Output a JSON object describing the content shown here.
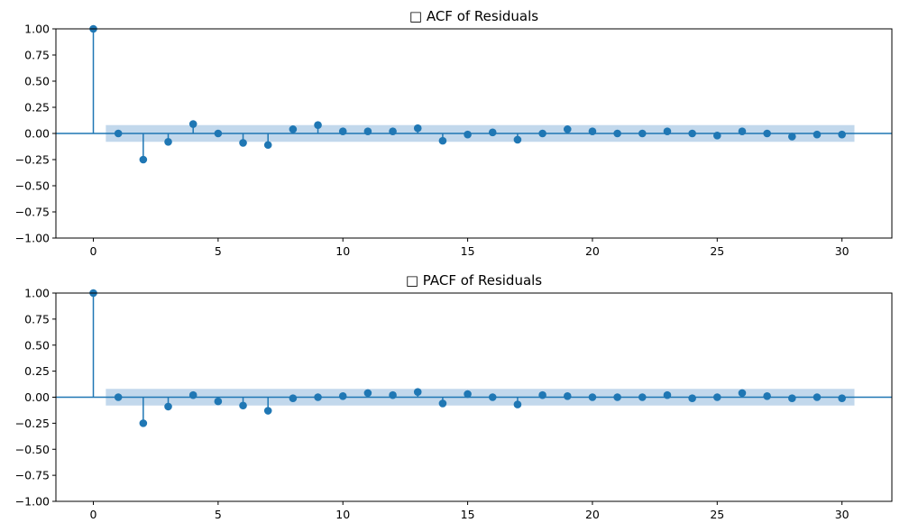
{
  "chart_data": [
    {
      "type": "stem",
      "title": "□ ACF of Residuals",
      "xlabel": "",
      "ylabel": "",
      "xlim": [
        -1.5,
        32
      ],
      "ylim": [
        -1.0,
        1.0
      ],
      "xticks": [
        0,
        5,
        10,
        15,
        20,
        25,
        30
      ],
      "xtick_labels": [
        "0",
        "5",
        "10",
        "15",
        "20",
        "25",
        "30"
      ],
      "yticks": [
        -1.0,
        -0.75,
        -0.5,
        -0.25,
        0.0,
        0.25,
        0.5,
        0.75,
        1.0
      ],
      "ytick_labels": [
        "−1.00",
        "−0.75",
        "−0.50",
        "−0.25",
        "0.00",
        "0.25",
        "0.50",
        "0.75",
        "1.00"
      ],
      "x": [
        0,
        1,
        2,
        3,
        4,
        5,
        6,
        7,
        8,
        9,
        10,
        11,
        12,
        13,
        14,
        15,
        16,
        17,
        18,
        19,
        20,
        21,
        22,
        23,
        24,
        25,
        26,
        27,
        28,
        29,
        30
      ],
      "values": [
        1.0,
        0.0,
        -0.25,
        -0.08,
        0.09,
        0.0,
        -0.09,
        -0.11,
        0.04,
        0.08,
        0.02,
        0.02,
        0.02,
        0.05,
        -0.07,
        -0.01,
        0.01,
        -0.06,
        0.0,
        0.04,
        0.02,
        0.0,
        0.0,
        0.02,
        0.0,
        -0.02,
        0.02,
        0.0,
        -0.03,
        -0.01,
        -0.01
      ],
      "confidence_band": {
        "lower": -0.08,
        "upper": 0.08,
        "x_start": 0.5,
        "x_end": 30.5
      },
      "color": "#1f77b4",
      "band_color": "#c2d8ec"
    },
    {
      "type": "stem",
      "title": "□ PACF of Residuals",
      "xlabel": "",
      "ylabel": "",
      "xlim": [
        -1.5,
        32
      ],
      "ylim": [
        -1.0,
        1.0
      ],
      "xticks": [
        0,
        5,
        10,
        15,
        20,
        25,
        30
      ],
      "xtick_labels": [
        "0",
        "5",
        "10",
        "15",
        "20",
        "25",
        "30"
      ],
      "yticks": [
        -1.0,
        -0.75,
        -0.5,
        -0.25,
        0.0,
        0.25,
        0.5,
        0.75,
        1.0
      ],
      "ytick_labels": [
        "−1.00",
        "−0.75",
        "−0.50",
        "−0.25",
        "0.00",
        "0.25",
        "0.50",
        "0.75",
        "1.00"
      ],
      "x": [
        0,
        1,
        2,
        3,
        4,
        5,
        6,
        7,
        8,
        9,
        10,
        11,
        12,
        13,
        14,
        15,
        16,
        17,
        18,
        19,
        20,
        21,
        22,
        23,
        24,
        25,
        26,
        27,
        28,
        29,
        30
      ],
      "values": [
        1.0,
        0.0,
        -0.25,
        -0.09,
        0.02,
        -0.04,
        -0.08,
        -0.13,
        -0.01,
        0.0,
        0.01,
        0.04,
        0.02,
        0.05,
        -0.06,
        0.03,
        0.0,
        -0.07,
        0.02,
        0.01,
        0.0,
        0.0,
        0.0,
        0.02,
        -0.01,
        0.0,
        0.04,
        0.01,
        -0.01,
        0.0,
        -0.01
      ],
      "confidence_band": {
        "lower": -0.08,
        "upper": 0.08,
        "x_start": 0.5,
        "x_end": 30.5
      },
      "color": "#1f77b4",
      "band_color": "#c2d8ec"
    }
  ]
}
